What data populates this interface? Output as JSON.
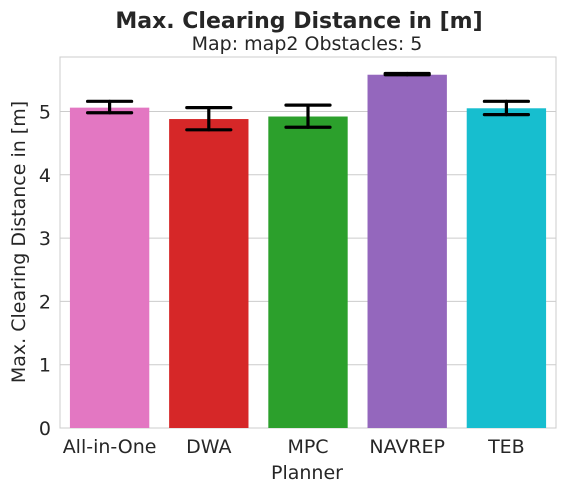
{
  "chart_data": {
    "type": "bar",
    "title": "Max. Clearing Distance in [m]",
    "subtitle": "Map: map2 Obstacles: 5",
    "xlabel": "Planner",
    "ylabel": "Max. Clearing Distance in [m]",
    "categories": [
      "All-in-One",
      "DWA",
      "MPC",
      "NAVREP",
      "TEB"
    ],
    "values": [
      5.06,
      4.88,
      4.92,
      5.58,
      5.05
    ],
    "error_low": [
      4.98,
      4.71,
      4.75,
      5.58,
      4.95
    ],
    "error_high": [
      5.16,
      5.06,
      5.1,
      5.6,
      5.16
    ],
    "colors": [
      "#e377c2",
      "#d62728",
      "#2ca02c",
      "#9467bd",
      "#17becf"
    ],
    "yticks": [
      "0",
      "1",
      "2",
      "3",
      "4",
      "5"
    ],
    "ylim": [
      0,
      5.86
    ],
    "grid": "horizontal",
    "legend": "none"
  }
}
